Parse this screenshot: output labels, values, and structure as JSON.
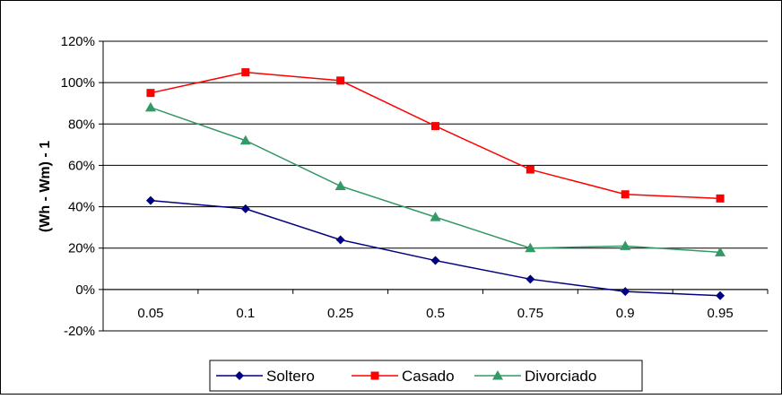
{
  "chart_data": {
    "type": "line",
    "title": "",
    "xlabel": "",
    "ylabel": "(Wh - Wm) - 1",
    "categories": [
      "0.05",
      "0.1",
      "0.25",
      "0.5",
      "0.75",
      "0.9",
      "0.95"
    ],
    "ylim": [
      -0.2,
      1.2
    ],
    "yticks": [
      -0.2,
      0,
      0.2,
      0.4,
      0.6,
      0.8,
      1.0,
      1.2
    ],
    "ytick_labels": [
      "-20%",
      "0%",
      "20%",
      "40%",
      "60%",
      "80%",
      "100%",
      "120%"
    ],
    "grid": true,
    "legend_position": "bottom",
    "series": [
      {
        "name": "Soltero",
        "color": "#000080",
        "marker": "diamond",
        "values": [
          0.43,
          0.39,
          0.24,
          0.14,
          0.05,
          -0.01,
          -0.03
        ]
      },
      {
        "name": "Casado",
        "color": "#ff0000",
        "marker": "square",
        "values": [
          0.95,
          1.05,
          1.01,
          0.79,
          0.58,
          0.46,
          0.44
        ]
      },
      {
        "name": "Divorciado",
        "color": "#339966",
        "marker": "triangle",
        "values": [
          0.88,
          0.72,
          0.5,
          0.35,
          0.2,
          0.21,
          0.18
        ]
      }
    ]
  }
}
